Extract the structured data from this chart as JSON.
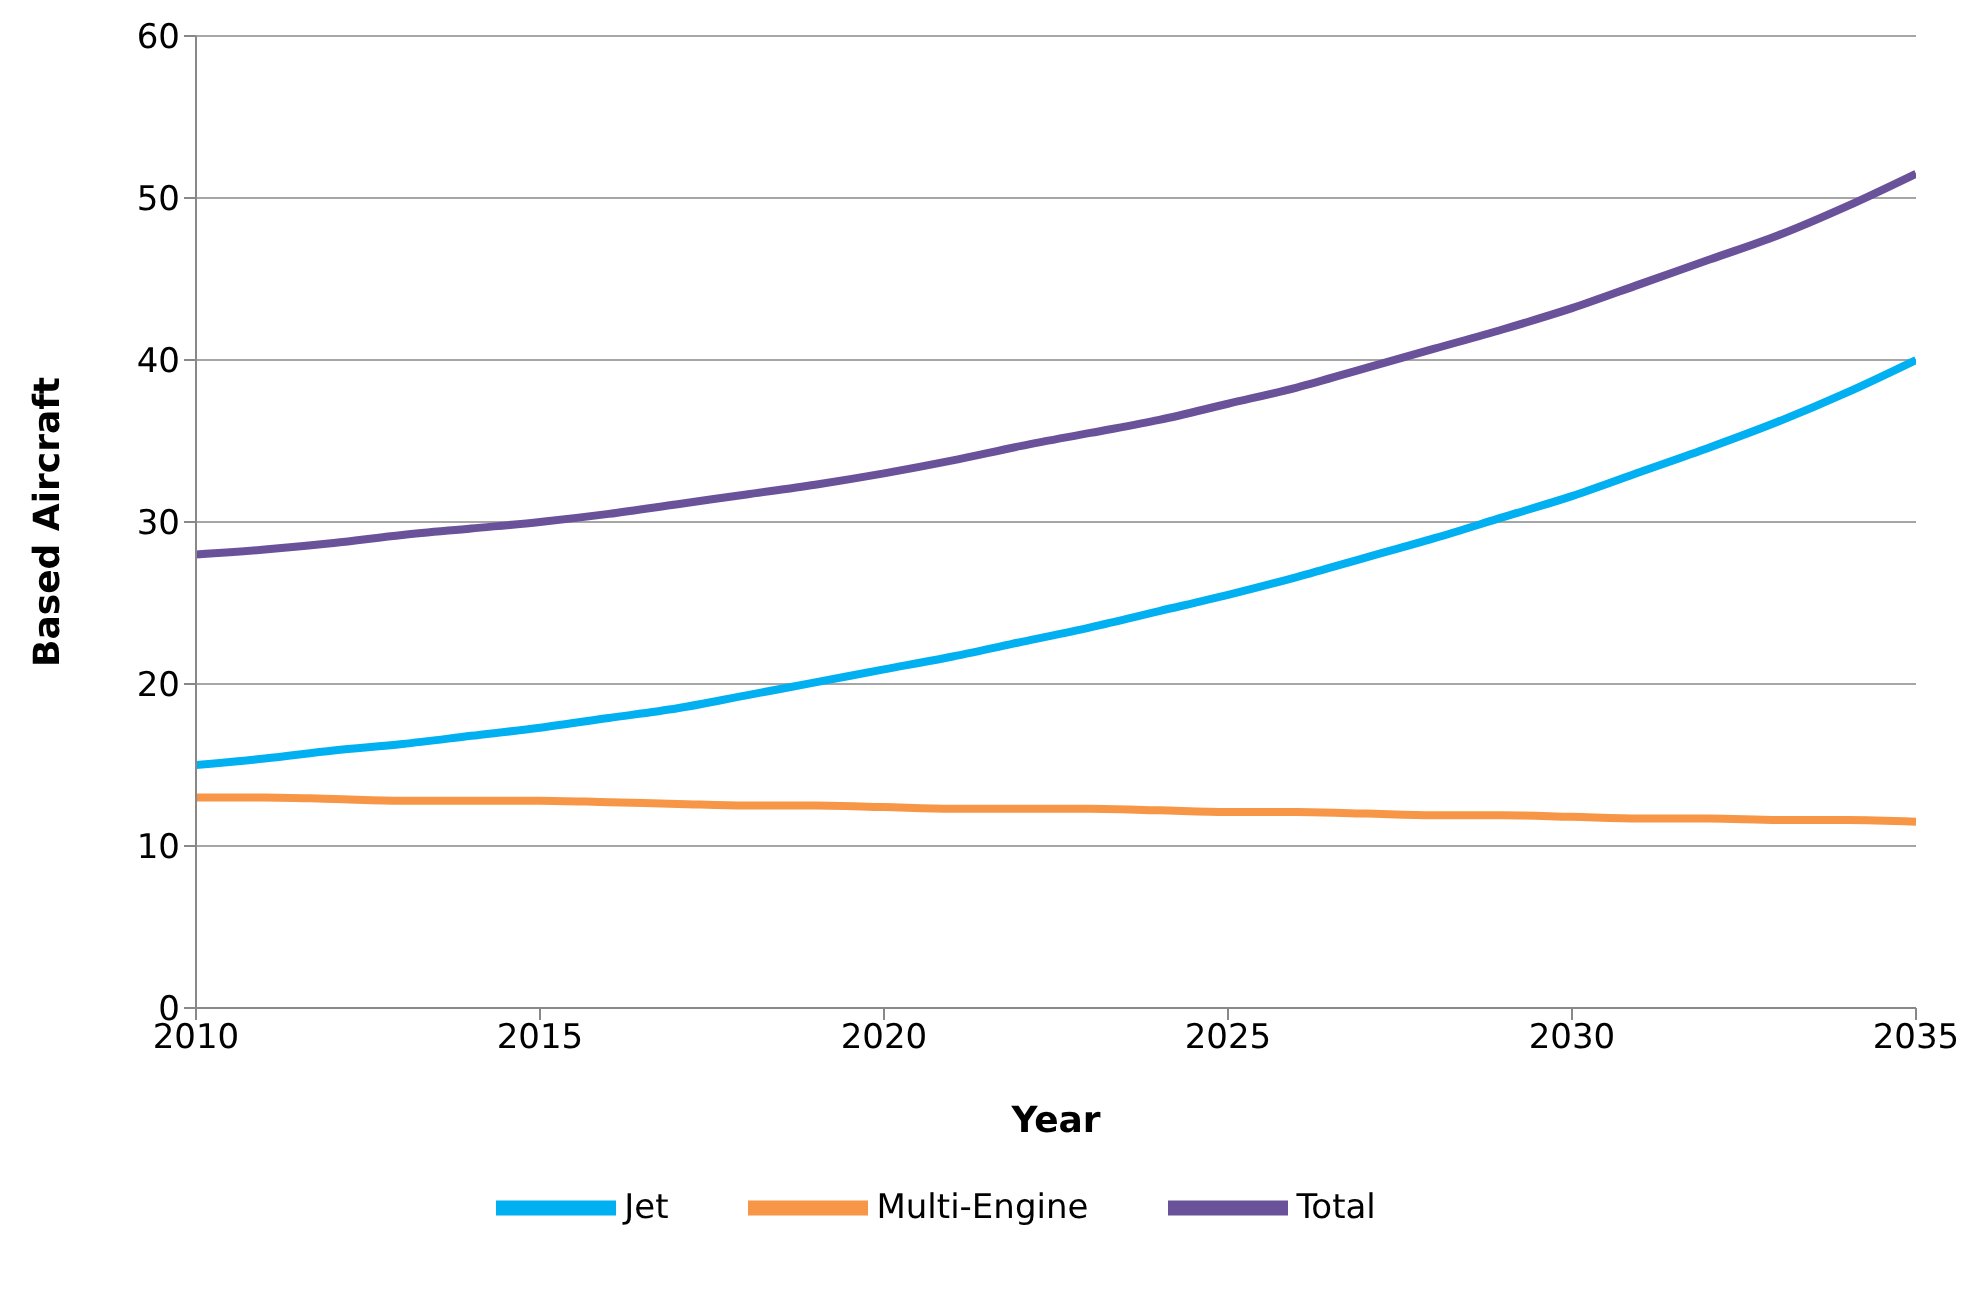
{
  "chart_data": {
    "type": "line",
    "xlabel": "Year",
    "ylabel": "Based Aircraft",
    "x": [
      2010,
      2011,
      2012,
      2013,
      2014,
      2015,
      2016,
      2017,
      2018,
      2019,
      2020,
      2021,
      2022,
      2023,
      2024,
      2025,
      2026,
      2027,
      2028,
      2029,
      2030,
      2031,
      2032,
      2033,
      2034,
      2035
    ],
    "series": [
      {
        "name": "Multi-Engine",
        "color": "#f79646",
        "values": [
          13.0,
          13.0,
          12.9,
          12.8,
          12.8,
          12.8,
          12.7,
          12.6,
          12.5,
          12.5,
          12.4,
          12.3,
          12.3,
          12.3,
          12.2,
          12.1,
          12.1,
          12.0,
          11.9,
          11.9,
          11.8,
          11.7,
          11.7,
          11.6,
          11.6,
          11.5
        ]
      },
      {
        "name": "Jet",
        "color": "#00b0f0",
        "values": [
          15.0,
          15.4,
          15.9,
          16.3,
          16.8,
          17.3,
          17.9,
          18.5,
          19.3,
          20.1,
          20.9,
          21.7,
          22.6,
          23.5,
          24.5,
          25.5,
          26.6,
          27.8,
          29.0,
          30.3,
          31.6,
          33.1,
          34.6,
          36.2,
          38.0,
          40.0
        ]
      },
      {
        "name": "Total",
        "color": "#6a529a",
        "values": [
          28.0,
          28.3,
          28.7,
          29.2,
          29.6,
          30.0,
          30.5,
          31.1,
          31.7,
          32.3,
          33.0,
          33.8,
          34.7,
          35.5,
          36.3,
          37.3,
          38.3,
          39.5,
          40.7,
          41.9,
          43.2,
          44.7,
          46.2,
          47.7,
          49.5,
          51.5
        ]
      }
    ],
    "xlim": [
      2010,
      2035
    ],
    "xticks": [
      2010,
      2015,
      2020,
      2025,
      2030,
      2035
    ],
    "ylim": [
      0,
      60
    ],
    "yticks": [
      0,
      10,
      20,
      30,
      40,
      50,
      60
    ],
    "grid": "y",
    "legend": "bottom",
    "marker": "none",
    "line_style": "solid"
  }
}
